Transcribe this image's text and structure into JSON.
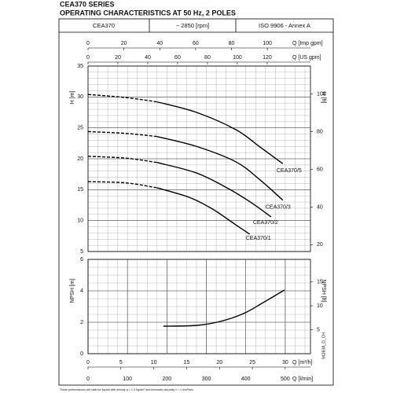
{
  "header": {
    "title": "CEA370 SERIES",
    "subtitle": "OPERATING CHARACTERISTICS AT 50 Hz, 2 POLES",
    "cells": [
      "CEA370",
      "~ 2850 [rpm]",
      "ISO 9906 - Annex A"
    ]
  },
  "chart_data": [
    {
      "type": "line",
      "ylabel": "H [m]",
      "y2label": "H [ft]",
      "xlim": [
        0,
        564
      ],
      "ylim": [
        5,
        35
      ],
      "yticks": [
        5,
        10,
        15,
        20,
        25,
        30,
        35
      ],
      "y2lim": [
        16.4,
        114.83
      ],
      "y2ticks": [
        20,
        40,
        60,
        80,
        100
      ],
      "grid": true,
      "x_minor_step": 25,
      "y_minor_step": 1,
      "x_axes": [
        {
          "label": "Q [Imp gpm]",
          "lim": [
            0,
            124.07
          ],
          "ticks": [
            0,
            20,
            40,
            60,
            80,
            100
          ]
        },
        {
          "label": "Q [US gpm]",
          "lim": [
            0,
            149.0
          ],
          "ticks": [
            0,
            20,
            40,
            60,
            80,
            100,
            120
          ]
        }
      ],
      "series": [
        {
          "name": "CEA370/5",
          "color": "#000000",
          "dashed_points": 3,
          "x": [
            0,
            96,
            175,
            275,
            375,
            434,
            494
          ],
          "values": [
            30.4,
            29.9,
            29.2,
            27.5,
            24.7,
            22.0,
            19.2
          ]
        },
        {
          "name": "CEA370/3",
          "color": "#000000",
          "dashed_points": 3,
          "x": [
            0,
            96,
            175,
            275,
            375,
            434,
            494
          ],
          "values": [
            24.4,
            24.1,
            23.6,
            22.0,
            19.5,
            16.7,
            13.3
          ]
        },
        {
          "name": "CEA370/2",
          "color": "#000000",
          "dashed_points": 3,
          "x": [
            0,
            96,
            175,
            275,
            355,
            414,
            464
          ],
          "values": [
            20.4,
            20.1,
            19.4,
            17.7,
            15.2,
            12.9,
            10.6
          ]
        },
        {
          "name": "CEA370/1",
          "color": "#000000",
          "dashed_points": 3,
          "x": [
            0,
            96,
            175,
            255,
            315,
            375,
            410
          ],
          "values": [
            16.3,
            16.1,
            15.3,
            13.8,
            11.9,
            9.3,
            7.8
          ]
        }
      ]
    },
    {
      "type": "line",
      "ylabel": "NPSH [m]",
      "y2label": "NPSH [ft]",
      "xlabel": "Q [l/min]",
      "xlim": [
        0,
        564
      ],
      "xticks": [
        0,
        100,
        200,
        300,
        400,
        500
      ],
      "ylim": [
        0,
        6
      ],
      "yticks": [
        0,
        2,
        4,
        6
      ],
      "y2lim": [
        0,
        19.69
      ],
      "y2ticks": [
        5,
        10,
        15
      ],
      "grid": true,
      "x_minor_step": 25,
      "y_minor_step": 0.5,
      "x_axes": [
        {
          "label": "Q [m³/h]",
          "lim": [
            0,
            33.84
          ],
          "ticks": [
            0,
            5,
            10,
            15,
            20,
            25,
            30
          ]
        }
      ],
      "series": [
        {
          "color": "#000000",
          "x": [
            191,
            275,
            335,
            394,
            444,
            498
          ],
          "values": [
            1.75,
            1.8,
            2.05,
            2.55,
            3.25,
            4.05
          ]
        }
      ]
    }
  ],
  "code": "94283A_D_CH",
  "footnote": "These performances are valid for liquids with density ρ = 1.0 Kg/dm³ and kinematic viscosity ν = 1 mm²/sec."
}
